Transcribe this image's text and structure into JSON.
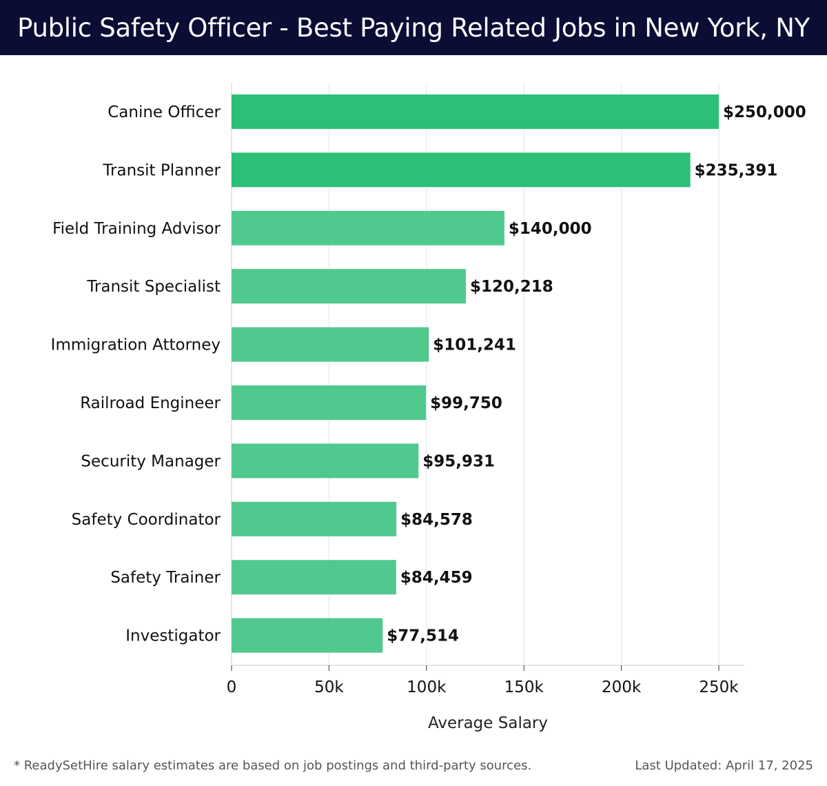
{
  "header": {
    "title": "Public Safety Officer - Best Paying Related Jobs in New York, NY",
    "background_color": "#0b0d35"
  },
  "chart_data": {
    "type": "bar",
    "orientation": "horizontal",
    "categories": [
      "Canine Officer",
      "Transit Planner",
      "Field Training Advisor",
      "Transit Specialist",
      "Immigration Attorney",
      "Railroad Engineer",
      "Security Manager",
      "Safety Coordinator",
      "Safety Trainer",
      "Investigator"
    ],
    "values": [
      250000,
      235391,
      140000,
      120218,
      101241,
      99750,
      95931,
      84578,
      84459,
      77514
    ],
    "value_labels": [
      "$250,000",
      "$235,391",
      "$140,000",
      "$120,218",
      "$101,241",
      "$99,750",
      "$95,931",
      "$84,578",
      "$84,459",
      "$77,514"
    ],
    "xlabel": "Average Salary",
    "ylabel": "",
    "xlim": [
      0,
      262500
    ],
    "xticks": [
      0,
      50000,
      100000,
      150000,
      200000,
      250000
    ],
    "xtick_labels": [
      "0",
      "50k",
      "100k",
      "150k",
      "200k",
      "250k"
    ],
    "grid": "vertical",
    "colors": {
      "top_bars": "#2dbf77",
      "other_bars": "#50c98e",
      "gridline": "#e3e3e3",
      "axis": "#cccccc"
    }
  },
  "footer": {
    "note": "* ReadySetHire salary estimates are based on job postings and third-party sources.",
    "updated": "Last Updated: April 17, 2025"
  }
}
